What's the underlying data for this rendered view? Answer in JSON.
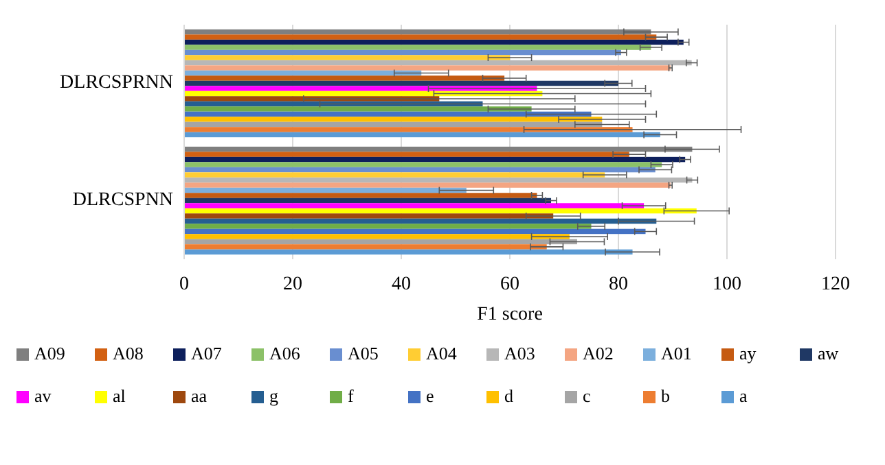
{
  "chart_data": {
    "type": "bar",
    "orientation": "horizontal",
    "categories": [
      "DLRCSPRNN",
      "DLRCSPNN"
    ],
    "xlabel": "F1 score",
    "xlim": [
      0,
      120
    ],
    "xticks": [
      0,
      20,
      40,
      60,
      80,
      100,
      120
    ],
    "grid": "x",
    "legend": "bottom",
    "series": [
      {
        "name": "A09",
        "color": "#7f7f7f",
        "values": [
          86,
          93.6
        ],
        "errors": [
          5,
          5
        ]
      },
      {
        "name": "A08",
        "color": "#d26012",
        "values": [
          87,
          82
        ],
        "errors": [
          2,
          3
        ]
      },
      {
        "name": "A07",
        "color": "#0d1f5c",
        "values": [
          92,
          92.3
        ],
        "errors": [
          1,
          1
        ]
      },
      {
        "name": "A06",
        "color": "#8cc168",
        "values": [
          86,
          88
        ],
        "errors": [
          2,
          2
        ]
      },
      {
        "name": "A05",
        "color": "#698ed0",
        "values": [
          80.5,
          86.8
        ],
        "errors": [
          1,
          3
        ]
      },
      {
        "name": "A04",
        "color": "#ffcd33",
        "values": [
          60,
          77.5
        ],
        "errors": [
          4,
          4
        ]
      },
      {
        "name": "A03",
        "color": "#b7b7b7",
        "values": [
          93.5,
          93.6
        ],
        "errors": [
          1,
          1
        ]
      },
      {
        "name": "A02",
        "color": "#f4a582",
        "values": [
          89.6,
          89.6
        ],
        "errors": [
          0.3,
          0.3
        ]
      },
      {
        "name": "A01",
        "color": "#7cafdd",
        "values": [
          43.7,
          52
        ],
        "errors": [
          5,
          5
        ]
      },
      {
        "name": "ay",
        "color": "#c55a11",
        "values": [
          59,
          65
        ],
        "errors": [
          4,
          1
        ]
      },
      {
        "name": "aw",
        "color": "#1f3864",
        "values": [
          80,
          67.6
        ],
        "errors": [
          2.5,
          1
        ]
      },
      {
        "name": "av",
        "color": "#ff00ff",
        "values": [
          65,
          84.7
        ],
        "errors": [
          20,
          4
        ]
      },
      {
        "name": "al",
        "color": "#ffff00",
        "values": [
          66,
          94.4
        ],
        "errors": [
          20,
          6
        ]
      },
      {
        "name": "aa",
        "color": "#9e480e",
        "values": [
          47,
          68
        ],
        "errors": [
          25,
          5
        ]
      },
      {
        "name": "g",
        "color": "#255e91",
        "values": [
          55,
          87
        ],
        "errors": [
          30,
          7
        ]
      },
      {
        "name": "f",
        "color": "#70ad47",
        "values": [
          64,
          75
        ],
        "errors": [
          8,
          2.5
        ]
      },
      {
        "name": "e",
        "color": "#4472c4",
        "values": [
          75,
          85
        ],
        "errors": [
          12,
          2
        ]
      },
      {
        "name": "d",
        "color": "#ffc000",
        "values": [
          77,
          71
        ],
        "errors": [
          8,
          7
        ]
      },
      {
        "name": "c",
        "color": "#a5a5a5",
        "values": [
          77,
          72.4
        ],
        "errors": [
          5,
          5
        ]
      },
      {
        "name": "b",
        "color": "#ed7d31",
        "values": [
          82.6,
          66.8
        ],
        "errors": [
          20,
          3
        ]
      },
      {
        "name": "a",
        "color": "#5b9bd5",
        "values": [
          87.7,
          82.6
        ],
        "errors": [
          3,
          5
        ]
      }
    ]
  }
}
